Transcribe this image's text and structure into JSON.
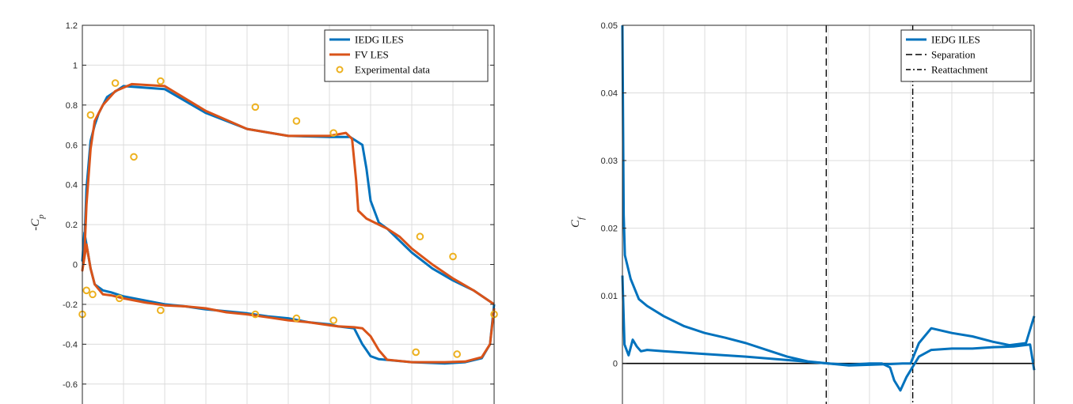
{
  "chart_data": [
    {
      "type": "line",
      "ylabel": "-C_p",
      "ylabel_main": "-C",
      "ylabel_sub": "p",
      "xlim": [
        0,
        1
      ],
      "ylim": [
        -0.7,
        1.2
      ],
      "yticks": [
        1.2,
        1,
        0.8,
        0.6,
        0.4,
        0.2,
        0,
        -0.2,
        -0.4,
        -0.6
      ],
      "ytick_labels": [
        "1.2",
        "1",
        "0.8",
        "0.6",
        "0.4",
        "0.2",
        "0",
        "-0.2",
        "-0.4",
        "-0.6"
      ],
      "xgrid": [
        0.1,
        0.2,
        0.3,
        0.4,
        0.5,
        0.6,
        0.7,
        0.8,
        0.9
      ],
      "grid": true,
      "legend_position": "top-right",
      "legend": [
        "IEDG ILES",
        "FV LES",
        "Experimental data"
      ],
      "series": [
        {
          "name": "IEDG ILES",
          "color": "#0072bd",
          "style": "solid",
          "x": [
            1.0,
            0.99,
            0.97,
            0.93,
            0.88,
            0.8,
            0.72,
            0.7,
            0.69,
            0.68,
            0.67,
            0.66,
            0.62,
            0.6,
            0.55,
            0.5,
            0.45,
            0.4,
            0.35,
            0.3,
            0.25,
            0.2,
            0.15,
            0.1,
            0.07,
            0.05,
            0.03,
            0.02,
            0.01,
            0.005,
            0.0,
            0.005,
            0.01,
            0.02,
            0.03,
            0.04,
            0.06,
            0.1,
            0.2,
            0.3,
            0.4,
            0.5,
            0.6,
            0.65,
            0.68,
            0.69,
            0.7,
            0.72,
            0.74,
            0.76,
            0.8,
            0.85,
            0.9,
            0.95,
            1.0
          ],
          "y": [
            -0.2,
            -0.4,
            -0.47,
            -0.49,
            -0.497,
            -0.49,
            -0.475,
            -0.46,
            -0.43,
            -0.4,
            -0.36,
            -0.32,
            -0.31,
            -0.3,
            -0.29,
            -0.27,
            -0.26,
            -0.245,
            -0.235,
            -0.225,
            -0.21,
            -0.2,
            -0.18,
            -0.16,
            -0.14,
            -0.13,
            -0.1,
            -0.02,
            0.1,
            0.16,
            0.02,
            0.1,
            0.38,
            0.62,
            0.7,
            0.76,
            0.84,
            0.895,
            0.88,
            0.76,
            0.68,
            0.645,
            0.64,
            0.64,
            0.6,
            0.48,
            0.32,
            0.21,
            0.18,
            0.14,
            0.06,
            -0.02,
            -0.08,
            -0.13,
            -0.2
          ]
        },
        {
          "name": "FV LES",
          "color": "#d95319",
          "style": "solid",
          "x": [
            1.0,
            0.99,
            0.97,
            0.93,
            0.88,
            0.8,
            0.74,
            0.72,
            0.7,
            0.68,
            0.66,
            0.62,
            0.6,
            0.55,
            0.5,
            0.45,
            0.4,
            0.35,
            0.3,
            0.25,
            0.2,
            0.15,
            0.1,
            0.07,
            0.05,
            0.03,
            0.02,
            0.01,
            0.0,
            0.005,
            0.01,
            0.02,
            0.03,
            0.05,
            0.08,
            0.12,
            0.2,
            0.3,
            0.4,
            0.5,
            0.6,
            0.64,
            0.655,
            0.665,
            0.67,
            0.69,
            0.72,
            0.74,
            0.77,
            0.8,
            0.85,
            0.9,
            0.95,
            1.0
          ],
          "y": [
            -0.22,
            -0.4,
            -0.465,
            -0.487,
            -0.49,
            -0.49,
            -0.478,
            -0.43,
            -0.36,
            -0.32,
            -0.315,
            -0.31,
            -0.305,
            -0.29,
            -0.28,
            -0.265,
            -0.25,
            -0.24,
            -0.22,
            -0.21,
            -0.205,
            -0.19,
            -0.17,
            -0.155,
            -0.15,
            -0.1,
            -0.02,
            0.1,
            -0.03,
            0.05,
            0.3,
            0.58,
            0.72,
            0.8,
            0.87,
            0.905,
            0.895,
            0.77,
            0.68,
            0.645,
            0.645,
            0.66,
            0.63,
            0.42,
            0.27,
            0.23,
            0.2,
            0.18,
            0.14,
            0.08,
            0.0,
            -0.07,
            -0.13,
            -0.2
          ]
        },
        {
          "name": "Experimental data",
          "color": "#edb120",
          "style": "marker",
          "x": [
            0.0,
            0.01,
            0.025,
            0.09,
            0.125,
            0.02,
            0.08,
            0.19,
            0.42,
            0.52,
            0.61,
            0.82,
            0.9,
            1.0,
            0.19,
            0.42,
            0.52,
            0.61,
            0.81,
            0.91
          ],
          "y": [
            -0.25,
            -0.13,
            -0.15,
            -0.17,
            0.54,
            0.75,
            0.91,
            0.92,
            0.79,
            0.72,
            0.66,
            0.14,
            0.04,
            -0.25,
            -0.23,
            -0.25,
            -0.27,
            -0.28,
            -0.44,
            -0.45
          ]
        }
      ]
    },
    {
      "type": "line",
      "ylabel": "C_f",
      "ylabel_main": "C",
      "ylabel_sub": "f",
      "xlim": [
        0,
        1
      ],
      "ylim": [
        -0.006,
        0.05
      ],
      "yticks": [
        0.05,
        0.04,
        0.03,
        0.02,
        0.01,
        0
      ],
      "ytick_labels": [
        "0.05",
        "0.04",
        "0.03",
        "0.02",
        "0.01",
        "0"
      ],
      "xgrid": [
        0.1,
        0.2,
        0.3,
        0.4,
        0.5,
        0.6,
        0.7,
        0.8,
        0.9
      ],
      "grid": true,
      "legend_position": "top-right",
      "legend": [
        "IEDG ILES",
        "Separation",
        "Reattachment"
      ],
      "separation_x": 0.495,
      "reattachment_x": 0.705,
      "series": [
        {
          "name": "IEDG ILES",
          "color": "#0072bd",
          "style": "solid",
          "x": [
            0.0,
            0.003,
            0.006,
            0.01,
            0.02,
            0.04,
            0.06,
            0.1,
            0.15,
            0.2,
            0.25,
            0.3,
            0.35,
            0.4,
            0.45,
            0.5,
            0.55,
            0.6,
            0.65,
            0.68,
            0.7,
            0.72,
            0.75,
            0.8,
            0.85,
            0.9,
            0.94,
            0.98,
            1.0
          ],
          "y": [
            0.05,
            0.022,
            0.016,
            0.015,
            0.0125,
            0.0095,
            0.0085,
            0.007,
            0.0055,
            0.0045,
            0.0038,
            0.003,
            0.002,
            0.001,
            0.0003,
            0.0,
            -0.0003,
            -0.0002,
            -0.0001,
            0.0,
            0.0,
            0.003,
            0.0052,
            0.0045,
            0.004,
            0.0032,
            0.0027,
            0.003,
            0.007
          ]
        },
        {
          "name": "IEDG ILES lower",
          "color": "#0072bd",
          "style": "solid",
          "x": [
            0.0,
            0.005,
            0.015,
            0.025,
            0.035,
            0.045,
            0.06,
            0.1,
            0.2,
            0.3,
            0.4,
            0.5,
            0.55,
            0.6,
            0.63,
            0.65,
            0.66,
            0.675,
            0.69,
            0.72,
            0.75,
            0.8,
            0.85,
            0.9,
            0.95,
            0.99,
            1.0
          ],
          "y": [
            0.013,
            0.0028,
            0.0012,
            0.0035,
            0.0025,
            0.0018,
            0.002,
            0.0018,
            0.0014,
            0.001,
            0.0005,
            0.0,
            -0.0002,
            0.0,
            0.0,
            -0.0006,
            -0.0025,
            -0.004,
            -0.002,
            0.001,
            0.002,
            0.0022,
            0.0022,
            0.0024,
            0.0025,
            0.0028,
            -0.001
          ]
        }
      ]
    }
  ]
}
